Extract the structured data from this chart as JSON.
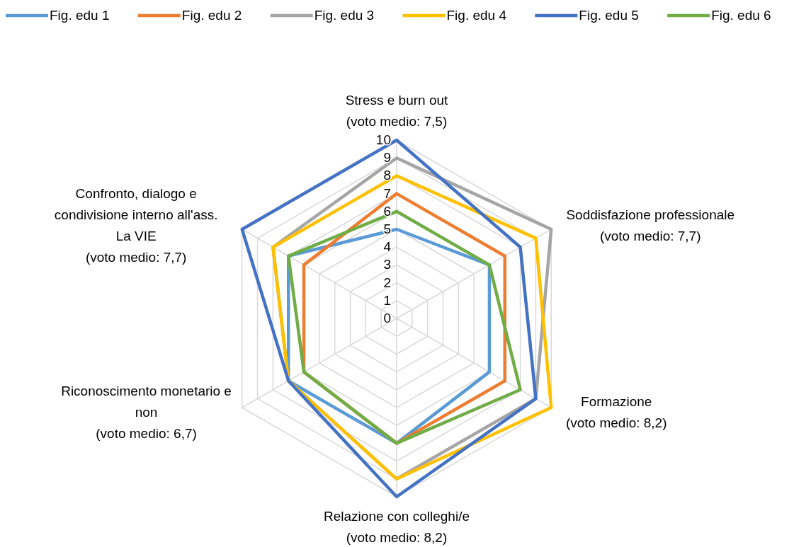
{
  "chart_data": {
    "type": "radar",
    "categories": [
      "Stress e burn out\n(voto medio: 7,5)",
      "Soddisfazione professionale\n(voto medio: 7,7)",
      "Formazione\n(voto medio: 8,2)",
      "Relazione con colleghi/e\n(voto medio: 8,2)",
      "Riconoscimento monetario e\nnon\n(voto medio: 6,7)",
      "Confronto, dialogo e\ncondivisione interno all'ass.\nLa VIE\n(voto medio: 7,7)"
    ],
    "series": [
      {
        "name": "Fig. edu 1",
        "color": "#5b9bd5",
        "values": [
          5,
          6,
          6,
          7,
          7,
          7
        ]
      },
      {
        "name": "Fig. edu 2",
        "color": "#ed7d31",
        "values": [
          7,
          7,
          7,
          7,
          6,
          6
        ]
      },
      {
        "name": "Fig. edu 3",
        "color": "#a5a5a5",
        "values": [
          9,
          10,
          9,
          9,
          7,
          8
        ]
      },
      {
        "name": "Fig. edu 4",
        "color": "#ffc000",
        "values": [
          8,
          9,
          10,
          9,
          7,
          8
        ]
      },
      {
        "name": "Fig. edu 5",
        "color": "#4472c4",
        "values": [
          10,
          8,
          9,
          10,
          7,
          10
        ]
      },
      {
        "name": "Fig. edu 6",
        "color": "#70ad47",
        "values": [
          6,
          6,
          8,
          7,
          6,
          7
        ]
      }
    ],
    "ylim": [
      0,
      10
    ],
    "yticks": [
      0,
      1,
      2,
      3,
      4,
      5,
      6,
      7,
      8,
      9,
      10
    ],
    "grid": true,
    "legend": "top",
    "marker": "none",
    "line_style": "solid"
  }
}
